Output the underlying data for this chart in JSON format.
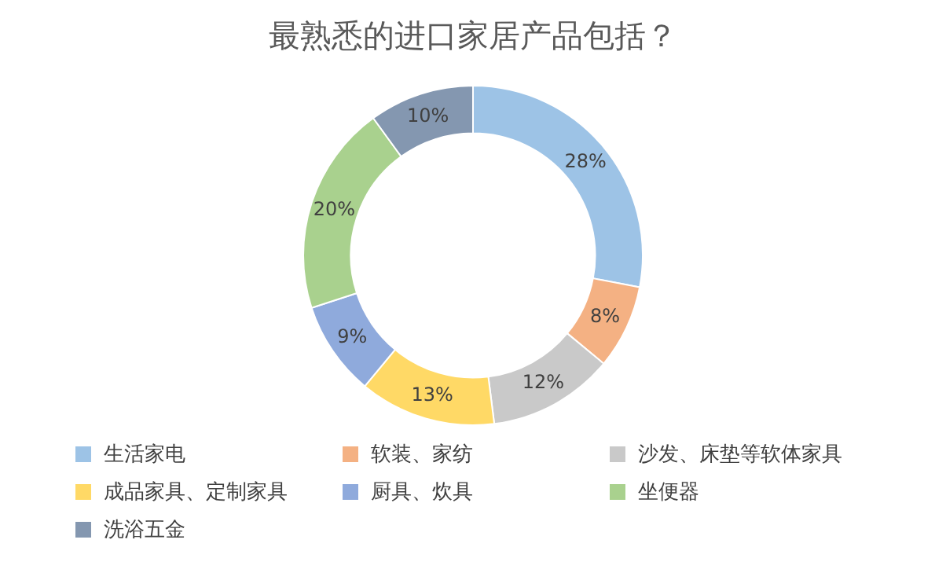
{
  "chart_data": {
    "type": "donut",
    "title": "最熟悉的进口家居产品包括？",
    "categories": [
      "生活家电",
      "软装、家纺",
      "沙发、床垫等软体家具",
      "成品家具、定制家具",
      "厨具、炊具",
      "坐便器",
      "洗浴五金"
    ],
    "values": [
      28,
      8,
      12,
      13,
      9,
      20,
      10
    ],
    "value_labels": [
      "28%",
      "8%",
      "12%",
      "13%",
      "9%",
      "20%",
      "10%"
    ],
    "colors": [
      "#9dc3e6",
      "#f4b183",
      "#c9c9c9",
      "#ffd966",
      "#8faadc",
      "#a9d18e",
      "#8497b0"
    ],
    "legend": "bottom"
  }
}
